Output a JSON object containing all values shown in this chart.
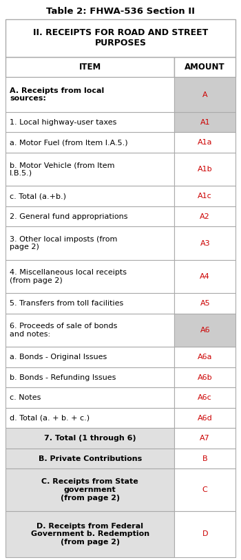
{
  "title": "Table 2: FHWA-536 Section II",
  "header_text": "II. RECEIPTS FOR ROAD AND STREET\nPURPOSES",
  "col_headers": [
    "ITEM",
    "AMOUNT"
  ],
  "rows": [
    {
      "item": "A. Receipts from local\nsources:",
      "amount": "A",
      "item_bold": true,
      "amount_bg": "#cccccc",
      "item_bg": "#ffffff",
      "center_item": false
    },
    {
      "item": "1. Local highway-user taxes",
      "amount": "A1",
      "item_bold": false,
      "amount_bg": "#cccccc",
      "item_bg": "#ffffff",
      "center_item": false
    },
    {
      "item": "a. Motor Fuel (from Item I.A.5.)",
      "amount": "A1a",
      "item_bold": false,
      "amount_bg": "#ffffff",
      "item_bg": "#ffffff",
      "center_item": false
    },
    {
      "item": "b. Motor Vehicle (from Item\nI.B.5.)",
      "amount": "A1b",
      "item_bold": false,
      "amount_bg": "#ffffff",
      "item_bg": "#ffffff",
      "center_item": false
    },
    {
      "item": "c. Total (a.+b.)",
      "amount": "A1c",
      "item_bold": false,
      "amount_bg": "#ffffff",
      "item_bg": "#ffffff",
      "center_item": false
    },
    {
      "item": "2. General fund appropriations",
      "amount": "A2",
      "item_bold": false,
      "amount_bg": "#ffffff",
      "item_bg": "#ffffff",
      "center_item": false
    },
    {
      "item": "3. Other local imposts (from\npage 2)",
      "amount": "A3",
      "item_bold": false,
      "amount_bg": "#ffffff",
      "item_bg": "#ffffff",
      "center_item": false
    },
    {
      "item": "4. Miscellaneous local receipts\n(from page 2)",
      "amount": "A4",
      "item_bold": false,
      "amount_bg": "#ffffff",
      "item_bg": "#ffffff",
      "center_item": false
    },
    {
      "item": "5. Transfers from toll facilities",
      "amount": "A5",
      "item_bold": false,
      "amount_bg": "#ffffff",
      "item_bg": "#ffffff",
      "center_item": false
    },
    {
      "item": "6. Proceeds of sale of bonds\nand notes:",
      "amount": "A6",
      "item_bold": false,
      "amount_bg": "#cccccc",
      "item_bg": "#ffffff",
      "center_item": false
    },
    {
      "item": "a. Bonds - Original Issues",
      "amount": "A6a",
      "item_bold": false,
      "amount_bg": "#ffffff",
      "item_bg": "#ffffff",
      "center_item": false
    },
    {
      "item": "b. Bonds - Refunding Issues",
      "amount": "A6b",
      "item_bold": false,
      "amount_bg": "#ffffff",
      "item_bg": "#ffffff",
      "center_item": false
    },
    {
      "item": "c. Notes",
      "amount": "A6c",
      "item_bold": false,
      "amount_bg": "#ffffff",
      "item_bg": "#ffffff",
      "center_item": false
    },
    {
      "item": "d. Total (a. + b. + c.)",
      "amount": "A6d",
      "item_bold": false,
      "amount_bg": "#ffffff",
      "item_bg": "#ffffff",
      "center_item": false
    },
    {
      "item": "7. Total (1 through 6)",
      "amount": "A7",
      "item_bold": true,
      "amount_bg": "#ffffff",
      "item_bg": "#e0e0e0",
      "center_item": true
    },
    {
      "item": "B. Private Contributions",
      "amount": "B",
      "item_bold": true,
      "amount_bg": "#ffffff",
      "item_bg": "#e0e0e0",
      "center_item": true
    },
    {
      "item": "C. Receipts from State\ngovernment\n(from page 2)",
      "amount": "C",
      "item_bold": true,
      "amount_bg": "#ffffff",
      "item_bg": "#e0e0e0",
      "center_item": true
    },
    {
      "item": "D. Receipts from Federal\nGovernment b. Redemption\n(from page 2)",
      "amount": "D",
      "item_bold": true,
      "amount_bg": "#ffffff",
      "item_bg": "#e0e0e0",
      "center_item": true
    }
  ],
  "red_color": "#cc0000",
  "border_color": "#aaaaaa",
  "title_fontsize": 9.5,
  "header_fontsize": 9.0,
  "col_header_fontsize": 8.5,
  "row_fontsize": 8.0,
  "fig_width": 3.5,
  "fig_height": 8.14,
  "dpi": 100
}
